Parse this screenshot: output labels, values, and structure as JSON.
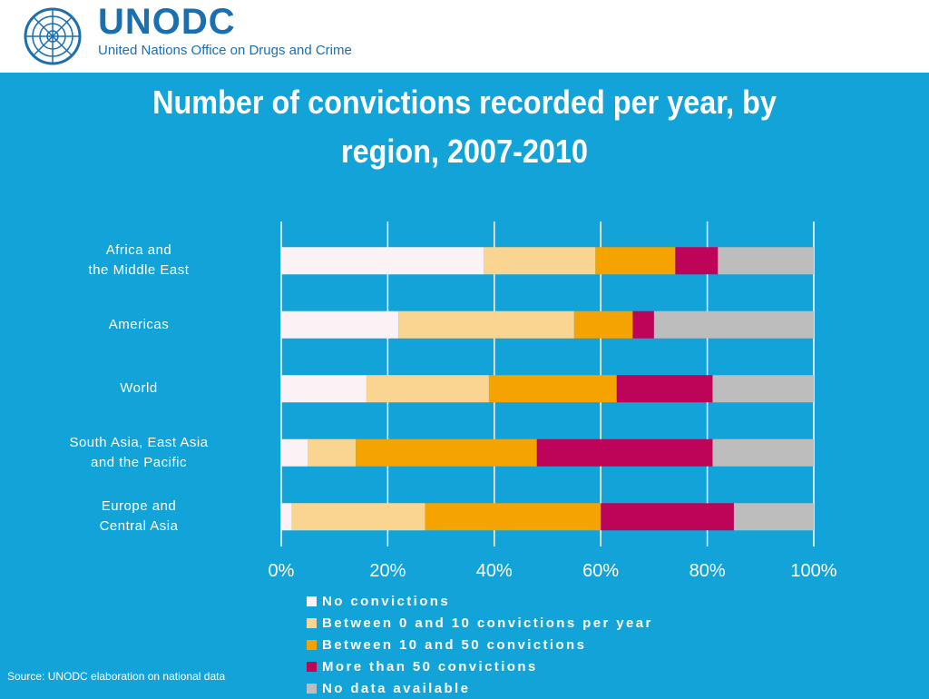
{
  "header": {
    "org_name": "UNODC",
    "org_full_name": "United Nations Office on Drugs and Crime",
    "emblem_icon": "un-emblem-icon"
  },
  "title_line1": "Number of convictions recorded per year, by",
  "title_line2": "region, 2007-2010",
  "source": "Source: UNODC elaboration on national data",
  "colors": {
    "background": "#12a3d9",
    "no_convictions": "#fbf2f5",
    "between_0_10": "#fad592",
    "between_10_50": "#f4a300",
    "more_than_50": "#be0459",
    "no_data": "#bdbdbd"
  },
  "chart_data": {
    "type": "bar",
    "orientation": "horizontal",
    "stacked": "100%",
    "title": "Number of convictions recorded per year, by region, 2007-2010",
    "categories": [
      "Africa and the Middle East",
      "Americas",
      "World",
      "South Asia, East Asia and the Pacific",
      "Europe and Central Asia"
    ],
    "category_label_lines": [
      [
        "Africa and",
        "the Middle East"
      ],
      [
        "Americas"
      ],
      [
        "World"
      ],
      [
        "South Asia, East Asia",
        "and the Pacific"
      ],
      [
        "Europe and",
        "Central Asia"
      ]
    ],
    "series": [
      {
        "name": "No convictions",
        "color": "#fbf2f5",
        "values": [
          38,
          22,
          16,
          5,
          2
        ]
      },
      {
        "name": "Between 0 and 10 convictions per year",
        "color": "#fad592",
        "values": [
          21,
          33,
          23,
          9,
          25
        ]
      },
      {
        "name": "Between 10 and 50 convictions",
        "color": "#f4a300",
        "values": [
          15,
          11,
          24,
          34,
          33
        ]
      },
      {
        "name": "More than 50 convictions",
        "color": "#be0459",
        "values": [
          8,
          4,
          18,
          33,
          25
        ]
      },
      {
        "name": "No data available",
        "color": "#bdbdbd",
        "values": [
          18,
          30,
          19,
          19,
          15
        ]
      }
    ],
    "x_ticks": [
      "0%",
      "20%",
      "40%",
      "60%",
      "80%",
      "100%"
    ],
    "xlim": [
      0,
      100
    ],
    "grid": true,
    "legend_position": "bottom"
  }
}
